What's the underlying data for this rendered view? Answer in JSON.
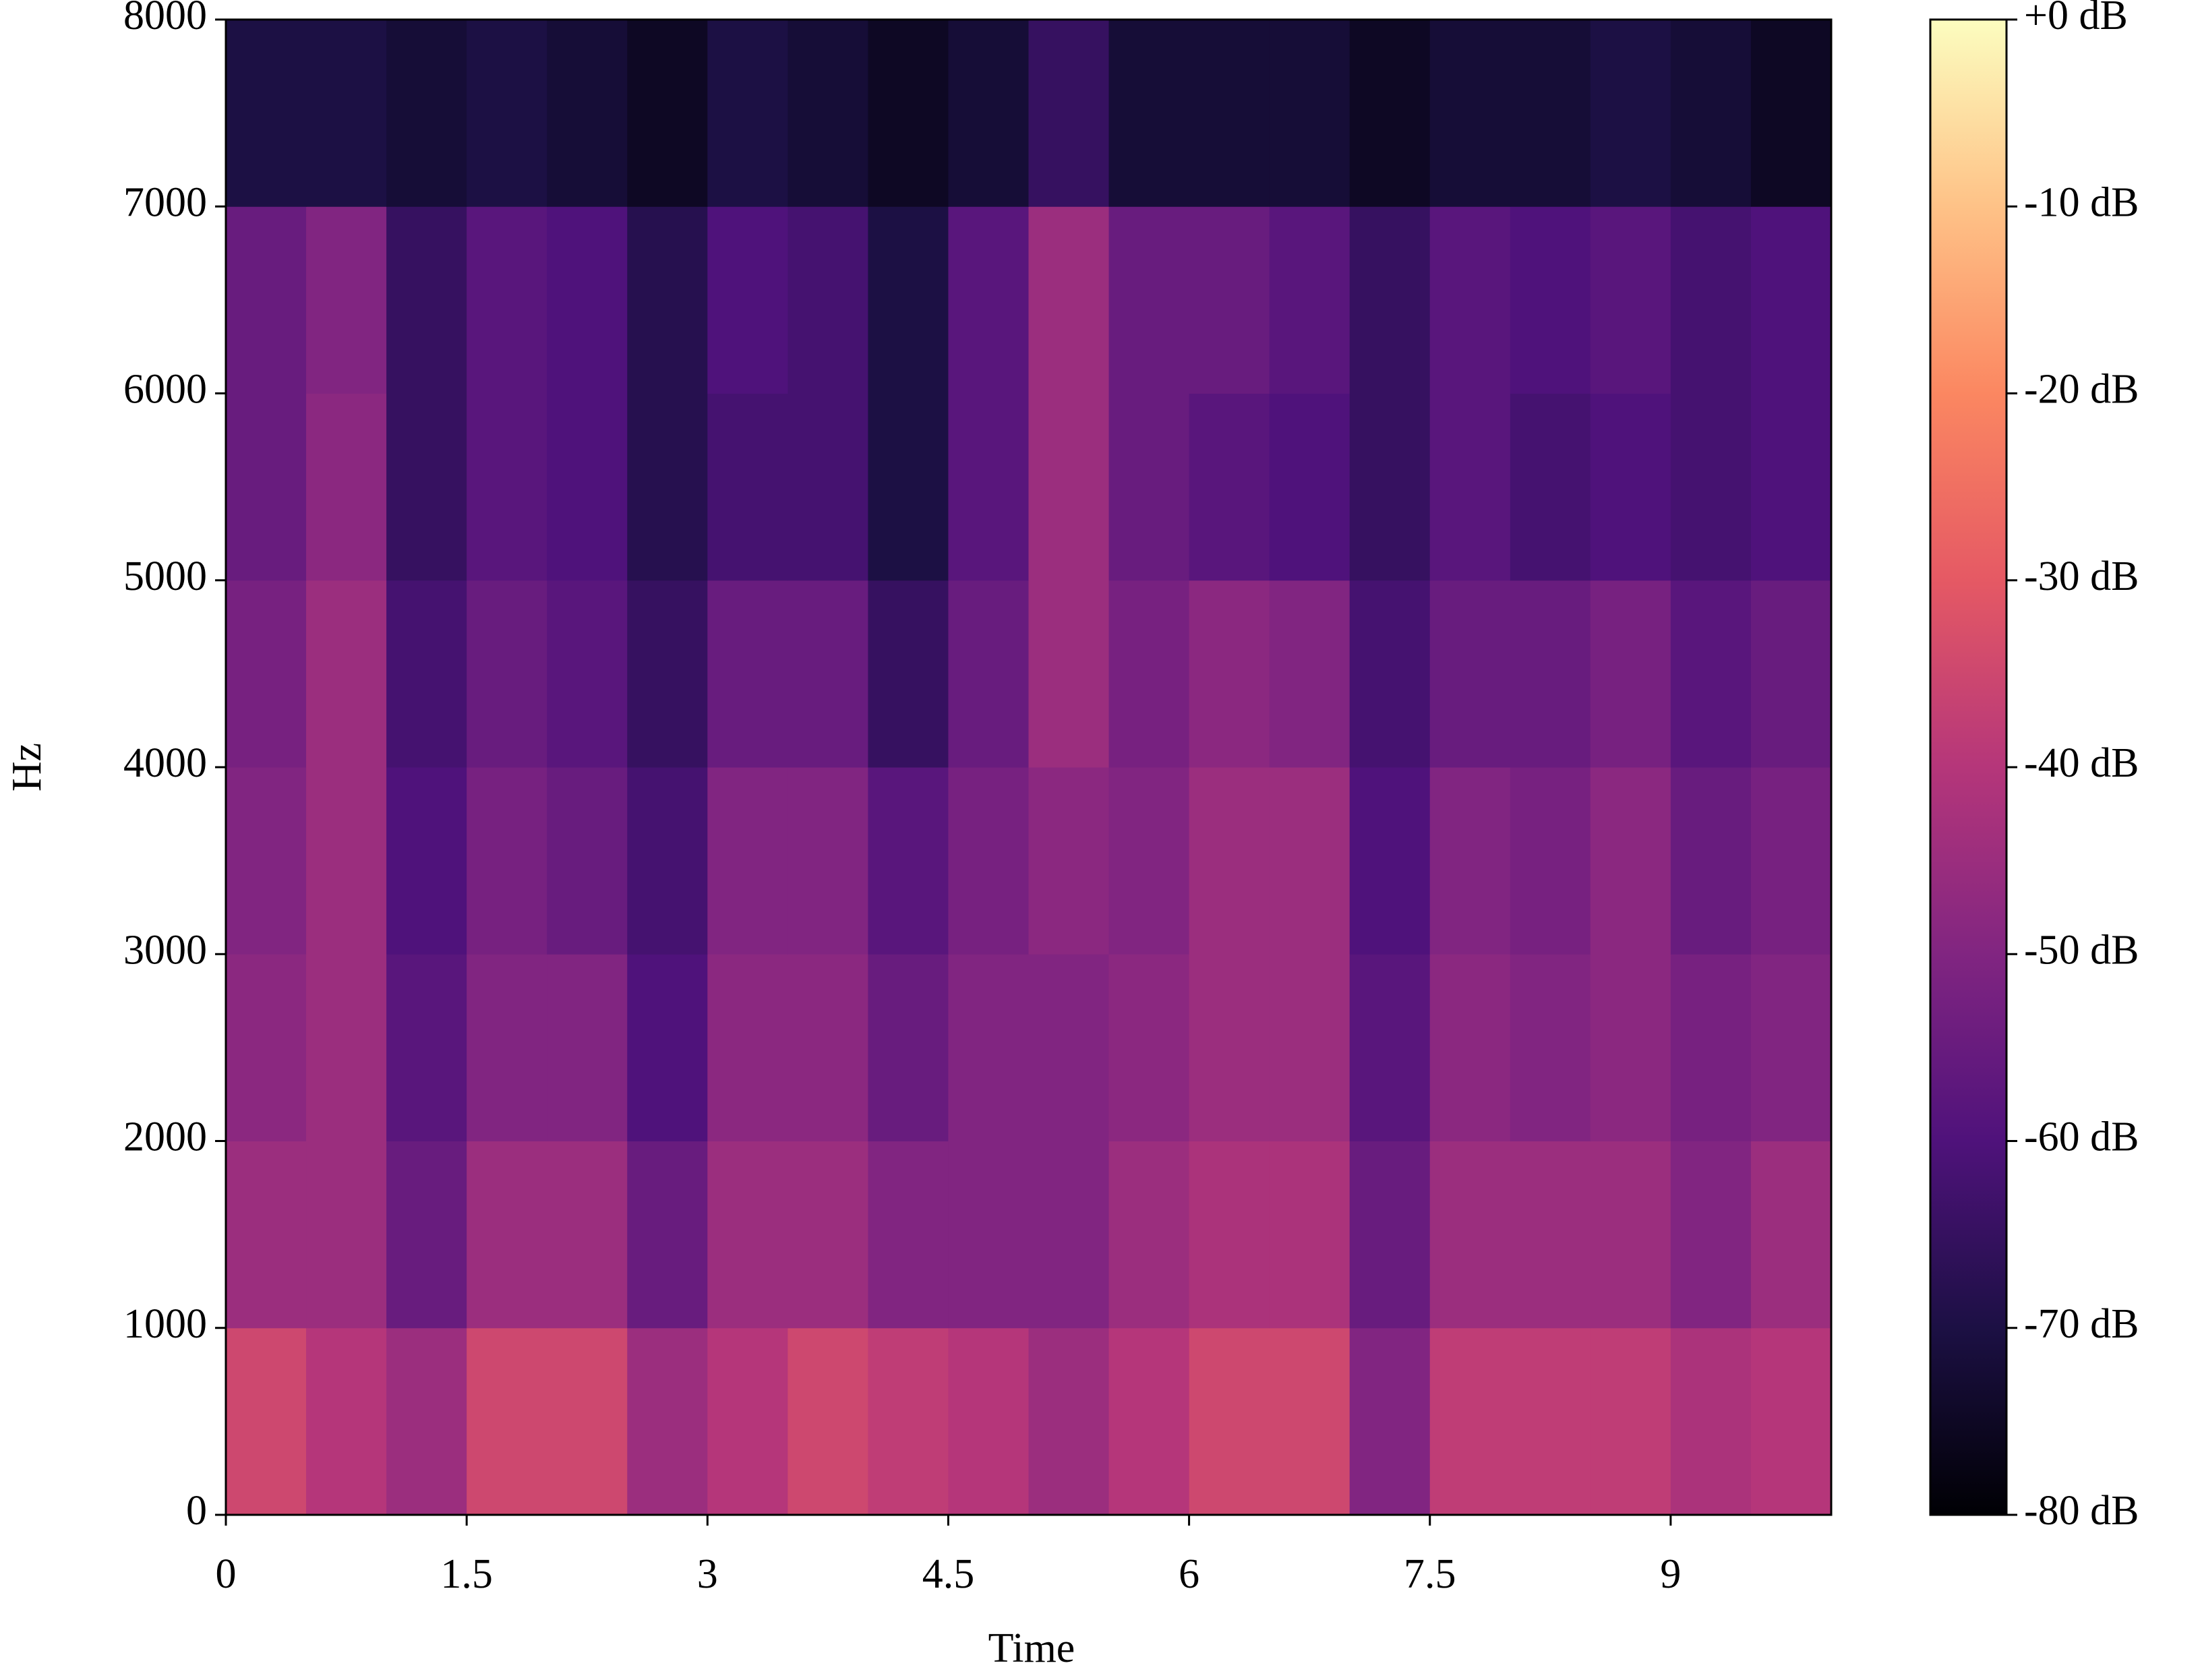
{
  "chart_data": {
    "type": "heatmap",
    "xlabel": "Time",
    "ylabel": "Hz",
    "xlim": [
      0,
      10
    ],
    "ylim": [
      0,
      8000
    ],
    "xticks": [
      0,
      1.5,
      3,
      4.5,
      6,
      7.5,
      9
    ],
    "yticks": [
      0,
      1000,
      2000,
      3000,
      4000,
      5000,
      6000,
      7000,
      8000
    ],
    "x_bins": [
      0,
      0.5,
      1,
      1.5,
      2,
      2.5,
      3,
      3.5,
      4,
      4.5,
      5,
      5.5,
      6,
      6.5,
      7,
      7.5,
      8,
      8.5,
      9,
      9.5,
      10
    ],
    "y_bins": [
      0,
      1000,
      2000,
      3000,
      4000,
      5000,
      6000,
      7000,
      8000
    ],
    "z": [
      [
        -35,
        -40,
        -45,
        -35,
        -35,
        -45,
        -40,
        -35,
        -38,
        -40,
        -45,
        -40,
        -35,
        -35,
        -50,
        -38,
        -38,
        -38,
        -42,
        -40
      ],
      [
        -45,
        -45,
        -55,
        -45,
        -45,
        -55,
        -45,
        -45,
        -50,
        -50,
        -50,
        -45,
        -42,
        -42,
        -55,
        -45,
        -45,
        -45,
        -50,
        -45
      ],
      [
        -48,
        -45,
        -58,
        -50,
        -50,
        -60,
        -48,
        -48,
        -55,
        -50,
        -50,
        -48,
        -45,
        -45,
        -58,
        -48,
        -50,
        -48,
        -52,
        -50
      ],
      [
        -50,
        -45,
        -60,
        -52,
        -55,
        -62,
        -50,
        -50,
        -58,
        -52,
        -48,
        -50,
        -45,
        -45,
        -60,
        -50,
        -52,
        -48,
        -55,
        -52
      ],
      [
        -52,
        -45,
        -62,
        -55,
        -58,
        -65,
        -55,
        -55,
        -65,
        -55,
        -45,
        -52,
        -48,
        -50,
        -62,
        -55,
        -55,
        -52,
        -58,
        -55
      ],
      [
        -55,
        -48,
        -65,
        -58,
        -60,
        -68,
        -62,
        -62,
        -70,
        -58,
        -45,
        -55,
        -58,
        -60,
        -65,
        -58,
        -62,
        -60,
        -62,
        -60
      ],
      [
        -55,
        -50,
        -65,
        -58,
        -60,
        -68,
        -60,
        -62,
        -70,
        -58,
        -45,
        -55,
        -55,
        -58,
        -65,
        -58,
        -60,
        -58,
        -62,
        -60
      ],
      [
        -70,
        -70,
        -72,
        -70,
        -72,
        -75,
        -70,
        -72,
        -75,
        -72,
        -65,
        -72,
        -72,
        -72,
        -75,
        -72,
        -72,
        -70,
        -72,
        -75
      ]
    ],
    "zlim": [
      -80,
      0
    ],
    "zticks": [
      {
        "value": 0,
        "label": "+0 dB"
      },
      {
        "value": -10,
        "label": "-10 dB"
      },
      {
        "value": -20,
        "label": "-20 dB"
      },
      {
        "value": -30,
        "label": "-30 dB"
      },
      {
        "value": -40,
        "label": "-40 dB"
      },
      {
        "value": -50,
        "label": "-50 dB"
      },
      {
        "value": -60,
        "label": "-60 dB"
      },
      {
        "value": -70,
        "label": "-70 dB"
      },
      {
        "value": -80,
        "label": "-80 dB"
      }
    ],
    "colormap": [
      "#000004",
      "#1c1044",
      "#4f127b",
      "#812581",
      "#b5367a",
      "#e55964",
      "#fb8761",
      "#fec287",
      "#fcfdbf"
    ]
  }
}
